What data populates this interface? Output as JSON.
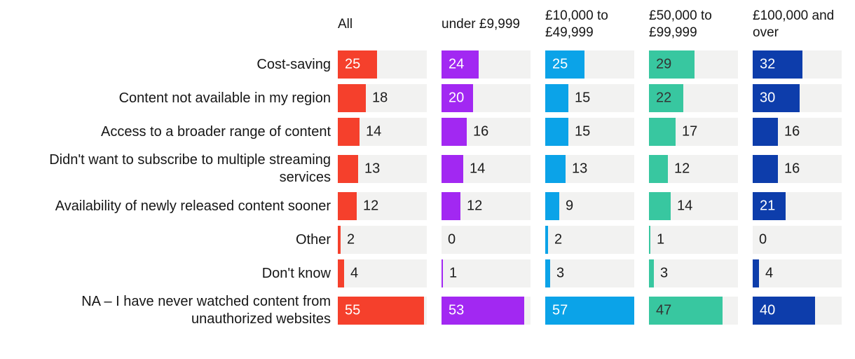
{
  "chart_data": {
    "type": "bar",
    "orientation": "horizontal",
    "title": "",
    "xlabel": "",
    "ylabel": "",
    "xlim": [
      0,
      57
    ],
    "grid": false,
    "legend_position": "column-headers-top",
    "track_color": "#f2f2f1",
    "outside_label_color": "#1c1c1c",
    "categories": [
      "Cost-saving",
      "Content not available in my region",
      "Access to a broader range of content",
      "Didn't want to subscribe to multiple streaming services",
      "Availability of newly released content sooner",
      "Other",
      "Don't know",
      "NA – I have never watched content from unauthorized websites"
    ],
    "series": [
      {
        "name": "All",
        "color": "#f5402c",
        "inside_label_color": "#ffffff",
        "values": [
          25,
          18,
          14,
          13,
          12,
          2,
          4,
          55
        ]
      },
      {
        "name": "under £9,999",
        "color": "#a228f2",
        "inside_label_color": "#ffffff",
        "values": [
          24,
          20,
          16,
          14,
          12,
          0,
          1,
          53
        ]
      },
      {
        "name": "£10,000 to £49,999",
        "color": "#0ba3e8",
        "inside_label_color": "#ffffff",
        "values": [
          25,
          15,
          15,
          13,
          9,
          2,
          3,
          57
        ]
      },
      {
        "name": "£50,000 to £99,999",
        "color": "#38c7a0",
        "inside_label_color": "#333333",
        "values": [
          29,
          22,
          17,
          12,
          14,
          1,
          3,
          47
        ]
      },
      {
        "name": "£100,000 and over",
        "color": "#0d3dab",
        "inside_label_color": "#ffffff",
        "values": [
          32,
          30,
          16,
          16,
          21,
          0,
          4,
          40
        ]
      }
    ]
  }
}
